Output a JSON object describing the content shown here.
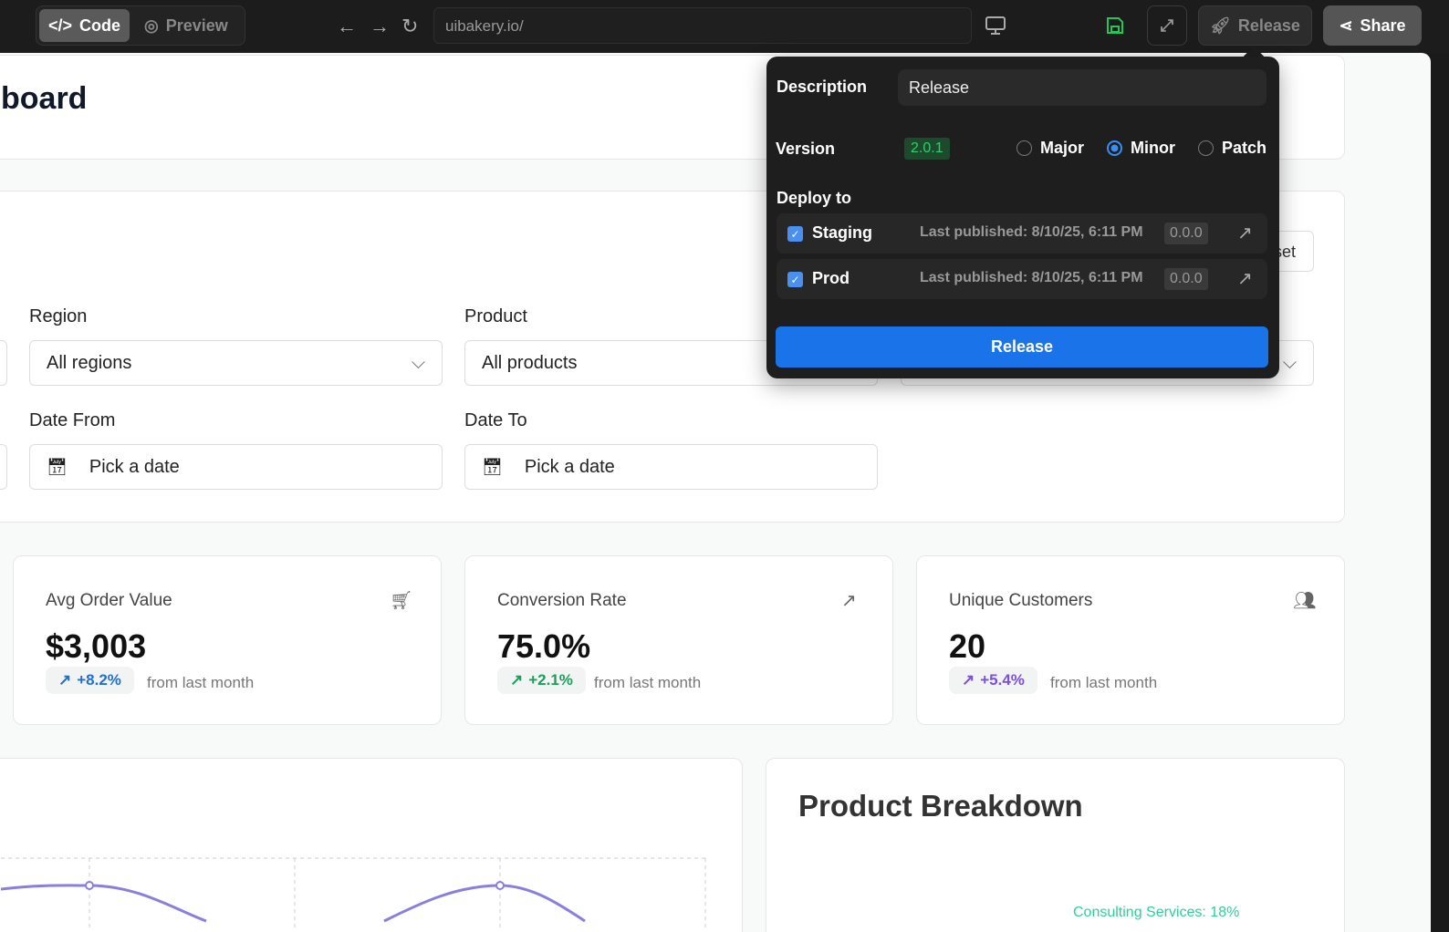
{
  "toolbar": {
    "code": "Code",
    "preview": "Preview",
    "url": "uibakery.io/",
    "release": "Release",
    "share": "Share"
  },
  "page": {
    "title": "board"
  },
  "filters": {
    "region_label": "Region",
    "region_value": "All regions",
    "product_label": "Product",
    "product_value": "All products",
    "reset_label": "set",
    "date_from_label": "Date From",
    "date_to_label": "Date To",
    "date_placeholder": "Pick a date"
  },
  "stats": [
    {
      "title": "Avg Order Value",
      "value": "$3,003",
      "change": "+8.2%",
      "suffix": "from last month",
      "icon": "cart-icon",
      "color": "#1f6fd1"
    },
    {
      "title": "Conversion Rate",
      "value": "75.0%",
      "change": "+2.1%",
      "suffix": "from last month",
      "icon": "trending-up-icon",
      "color": "#1f9d5c"
    },
    {
      "title": "Unique Customers",
      "value": "20",
      "change": "+5.4%",
      "suffix": "from last month",
      "icon": "users-icon",
      "color": "#7b4fe0"
    }
  ],
  "breakdown": {
    "title": "Product Breakdown",
    "label": "Consulting Services: 18%"
  },
  "popover": {
    "description_label": "Description",
    "description_value": "Release",
    "version_label": "Version",
    "version": "2.0.1",
    "options": [
      "Major",
      "Minor",
      "Patch"
    ],
    "selected": "Minor",
    "deploy_label": "Deploy to",
    "targets": [
      {
        "name": "Staging",
        "checked": true,
        "published": "Last published: 8/10/25, 6:11 PM",
        "version": "0.0.0"
      },
      {
        "name": "Prod",
        "checked": true,
        "published": "Last published: 8/10/25, 6:11 PM",
        "version": "0.0.0"
      }
    ],
    "release_button": "Release"
  },
  "colors": {
    "accent": "#1a73e8",
    "save": "#22c55e",
    "line": "#8a7fdc",
    "label_green": "#2fcf9a"
  }
}
